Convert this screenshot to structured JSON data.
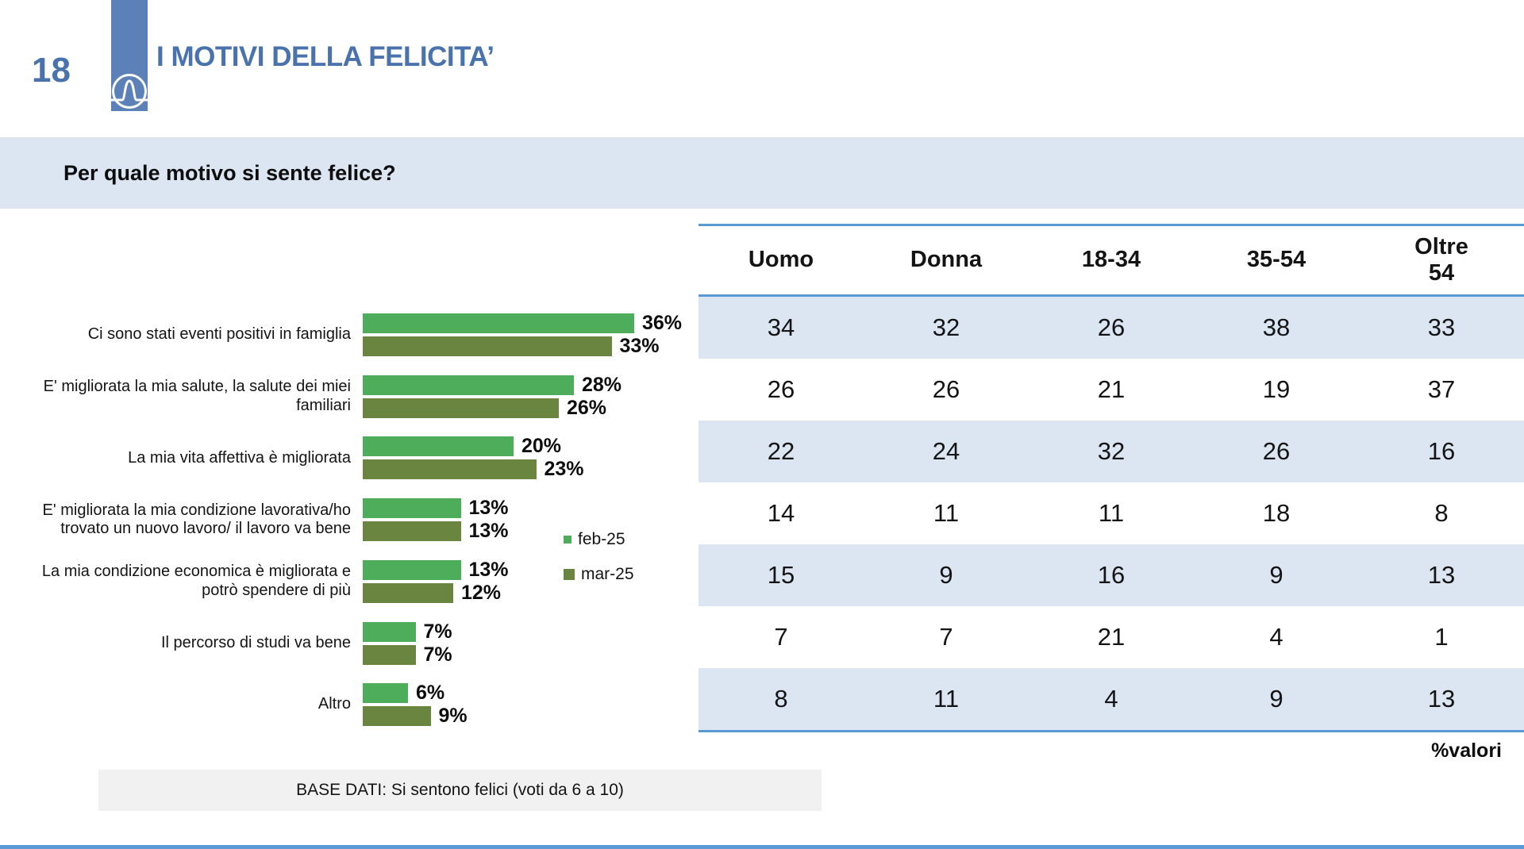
{
  "header": {
    "page_number": "18",
    "title": "I MOTIVI DELLA FELICITA’"
  },
  "question": "Per quale motivo si sente felice?",
  "colors": {
    "accent_blue_text": "#4a72ad",
    "logo_bar_blue": "#5c80b8",
    "strip_light_blue": "#dce6f2",
    "table_line_blue": "#5b9bd5",
    "feb_green": "#4ead5a",
    "mar_green": "#6a8540",
    "footer_gray": "#f1f1f1"
  },
  "chart_data": {
    "type": "bar",
    "orientation": "horizontal",
    "unit": "%",
    "value_labels": true,
    "grid": false,
    "legend_position": "right-middle",
    "xlim": [
      0,
      40
    ],
    "categories": [
      "Ci sono stati eventi positivi in famiglia",
      "E' migliorata la mia salute, la salute dei miei familiari",
      "La mia vita affettiva è migliorata",
      "E' migliorata la mia condizione lavorativa/ho trovato un nuovo lavoro/ il lavoro va bene",
      "La mia condizione economica è migliorata e potrò spendere di più",
      "Il percorso di studi va bene",
      "Altro"
    ],
    "series": [
      {
        "name": "feb-25",
        "color": "#4ead5a",
        "values": [
          36,
          28,
          20,
          13,
          13,
          7,
          6
        ]
      },
      {
        "name": "mar-25",
        "color": "#6a8540",
        "values": [
          33,
          26,
          23,
          13,
          12,
          7,
          9
        ]
      }
    ]
  },
  "table": {
    "columns": [
      "Uomo",
      "Donna",
      "18-34",
      "35-54",
      "Oltre 54"
    ],
    "rows": [
      [
        34,
        32,
        26,
        38,
        33
      ],
      [
        26,
        26,
        21,
        19,
        37
      ],
      [
        22,
        24,
        32,
        26,
        16
      ],
      [
        14,
        11,
        11,
        18,
        8
      ],
      [
        15,
        9,
        16,
        9,
        13
      ],
      [
        7,
        7,
        21,
        4,
        1
      ],
      [
        8,
        11,
        4,
        9,
        13
      ]
    ],
    "unit_note": "%valori"
  },
  "footer": {
    "base_dati": "BASE DATI: Si sentono felici (voti da 6 a 10)"
  }
}
